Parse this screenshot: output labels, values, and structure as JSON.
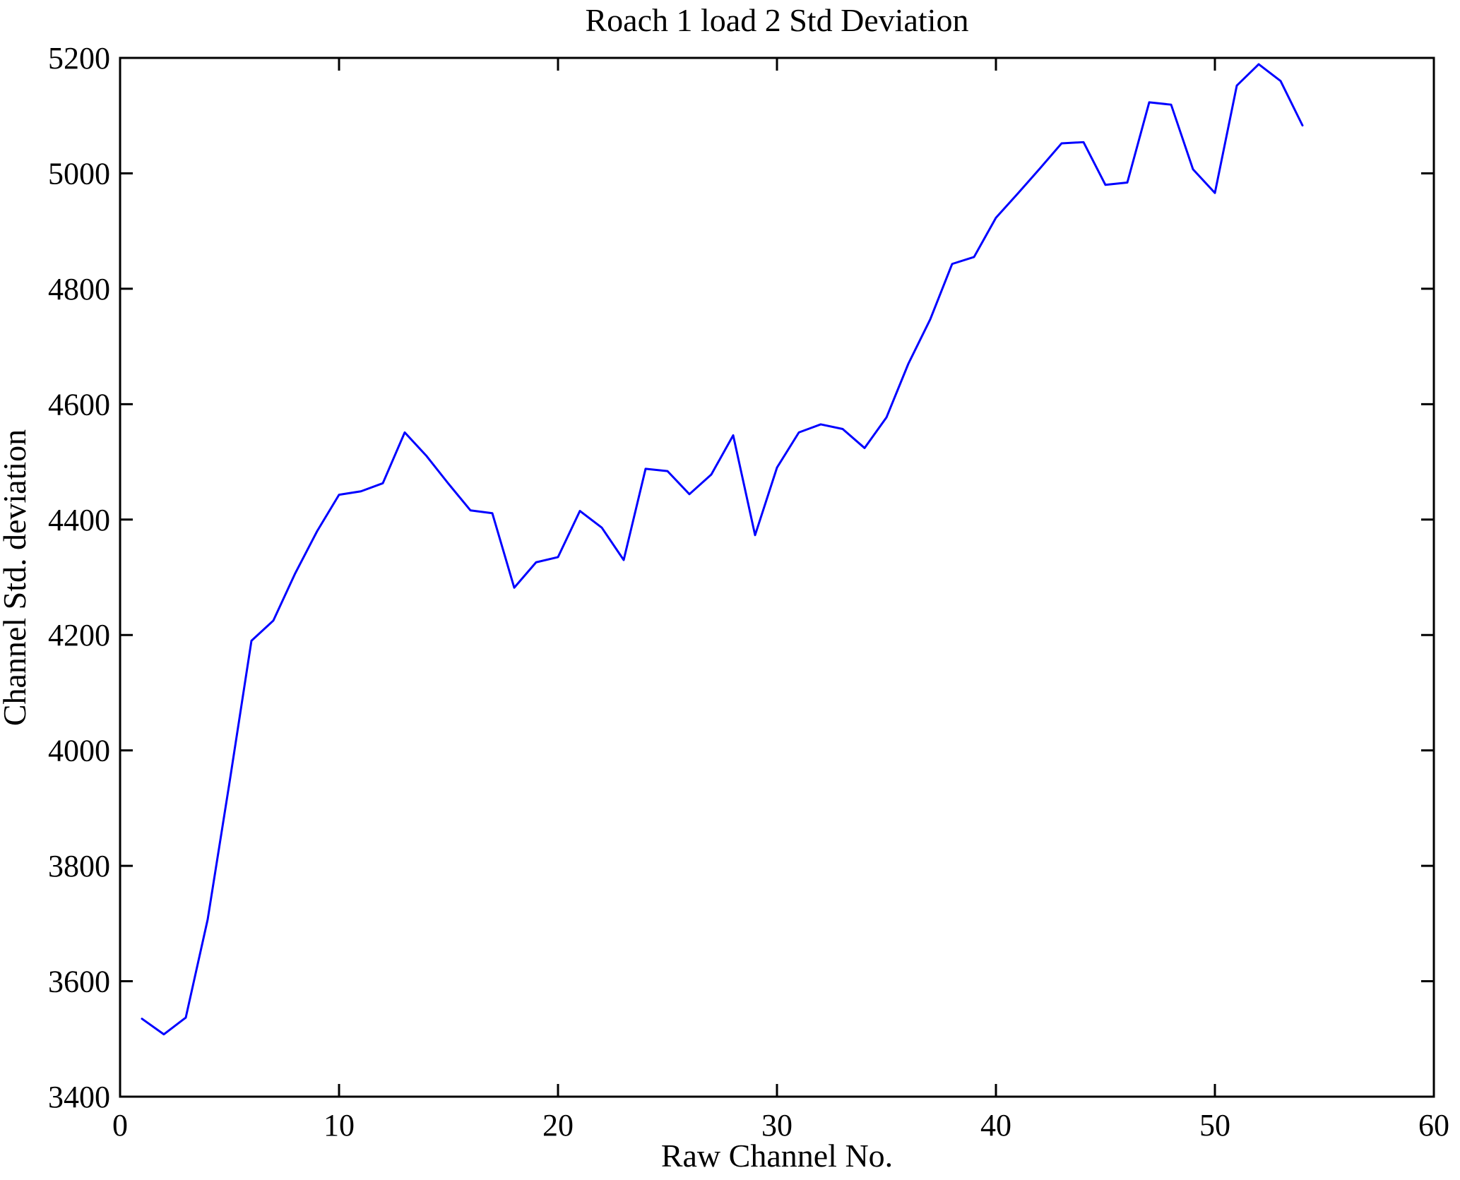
{
  "page": {
    "background": "#ffffff"
  },
  "chart_data": {
    "type": "line",
    "title": "Roach 1 load 2 Std Deviation",
    "xlabel": "Raw Channel No.",
    "ylabel": "Channel Std. deviation",
    "xlim": [
      0,
      60
    ],
    "ylim": [
      3400,
      5200
    ],
    "xticks": [
      0,
      10,
      20,
      30,
      40,
      50,
      60
    ],
    "yticks": [
      3400,
      3600,
      3800,
      4000,
      4200,
      4400,
      4600,
      4800,
      5000,
      5200
    ],
    "grid": false,
    "legend_position": "none",
    "line_color": "#0000ff",
    "axis_color": "#000000",
    "x": [
      1,
      2,
      3,
      4,
      5,
      6,
      7,
      8,
      9,
      10,
      11,
      12,
      13,
      14,
      15,
      16,
      17,
      18,
      19,
      20,
      21,
      22,
      23,
      24,
      25,
      26,
      27,
      28,
      29,
      30,
      31,
      32,
      33,
      34,
      35,
      36,
      37,
      38,
      39,
      40,
      41,
      42,
      43,
      44,
      45,
      46,
      47,
      48,
      49,
      50,
      51,
      52,
      53,
      54
    ],
    "values": [
      3535,
      3508,
      3537,
      3707,
      3945,
      4190,
      4225,
      4307,
      4380,
      4443,
      4449,
      4463,
      4551,
      4510,
      4462,
      4416,
      4411,
      4282,
      4326,
      4335,
      4415,
      4386,
      4330,
      4488,
      4484,
      4444,
      4478,
      4546,
      4373,
      4490,
      4551,
      4565,
      4557,
      4524,
      4577,
      4670,
      4747,
      4843,
      4855,
      4923,
      4965,
      5008,
      5052,
      5054,
      4980,
      4984,
      5123,
      5119,
      5007,
      4966,
      5152,
      5189,
      5160,
      5083
    ]
  }
}
